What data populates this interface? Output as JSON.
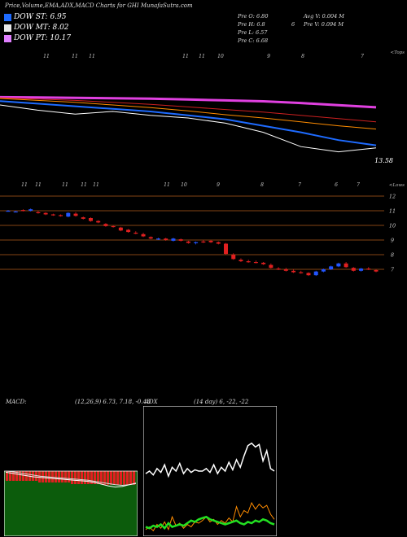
{
  "header": {
    "title": "Price,Volume,EMA,ADX,MACD Charts for GHI MunafaSutra.com"
  },
  "legend": [
    {
      "label": "DOW ST: 6.95",
      "color": "#1e6bff"
    },
    {
      "label": "DOW MT: 8.02",
      "color": "#e8e8e8"
    },
    {
      "label": "DOW PT: 10.17",
      "color": "#e080ff"
    }
  ],
  "ohlc": {
    "open": "Pre O: 6.80",
    "high": "Pre H: 6.8",
    "low": "Pre L: 6.57",
    "close": "Pre C: 6.68",
    "avg_vol": "Avg V: 0.004 M",
    "pre_vol": "Pre V: 0.094 M",
    "six": "6"
  },
  "ema_panel": {
    "top_label": "<Tops",
    "low_label": "<Lows",
    "value_label": "13.58",
    "top_ticks": [
      "11",
      "11",
      "11",
      "11",
      "11",
      "10",
      "9",
      "8",
      "7",
      "6",
      "7"
    ],
    "low_ticks": [
      "11",
      "11",
      "11",
      "11",
      "11",
      "11",
      "10",
      "9",
      "8",
      "7",
      "6",
      "7"
    ]
  },
  "chart_data": [
    {
      "type": "line",
      "title": "",
      "series": [
        {
          "name": "",
          "color": "#e040e0",
          "values": [
            15.6,
            15.58,
            15.55,
            15.52,
            15.48,
            15.42,
            15.35,
            15.28,
            15.15,
            14.98,
            14.82
          ]
        },
        {
          "name": "",
          "color": "#cc2020",
          "values": [
            15.55,
            15.45,
            15.35,
            15.2,
            15.05,
            14.85,
            14.65,
            14.45,
            14.2,
            13.95,
            13.7
          ]
        },
        {
          "name": "",
          "color": "#ff8c00",
          "values": [
            15.5,
            15.35,
            15.2,
            15.0,
            14.8,
            14.55,
            14.25,
            14.0,
            13.7,
            13.4,
            13.15
          ]
        },
        {
          "name": "",
          "color": "#1e6bff",
          "values": [
            15.3,
            15.1,
            14.9,
            14.7,
            14.5,
            14.2,
            13.9,
            13.4,
            12.9,
            12.3,
            11.9
          ]
        },
        {
          "name": "",
          "color": "#ffffff",
          "values": [
            15.0,
            14.6,
            14.3,
            14.5,
            14.2,
            14.0,
            13.6,
            12.9,
            11.8,
            11.4,
            11.7
          ]
        }
      ],
      "ylim": [
        11,
        16
      ]
    },
    {
      "type": "candlestick",
      "title": "",
      "y_ticks": [
        "12",
        "11",
        "10",
        "9",
        "8",
        "7"
      ],
      "candles": [
        [
          11.0,
          11.05,
          10.95,
          11.0
        ],
        [
          10.95,
          11.0,
          10.9,
          10.95
        ],
        [
          11.05,
          11.1,
          10.95,
          11.0
        ],
        [
          11.0,
          11.15,
          10.95,
          11.1
        ],
        [
          10.9,
          11.0,
          10.8,
          10.85
        ],
        [
          10.85,
          10.9,
          10.7,
          10.75
        ],
        [
          10.75,
          10.8,
          10.65,
          10.7
        ],
        [
          10.7,
          10.75,
          10.6,
          10.65
        ],
        [
          10.6,
          10.9,
          10.55,
          10.85
        ],
        [
          10.8,
          10.9,
          10.6,
          10.65
        ],
        [
          10.55,
          10.6,
          10.4,
          10.45
        ],
        [
          10.5,
          10.55,
          10.25,
          10.3
        ],
        [
          10.3,
          10.35,
          10.15,
          10.2
        ],
        [
          10.1,
          10.15,
          9.9,
          9.95
        ],
        [
          9.95,
          10.0,
          9.85,
          9.9
        ],
        [
          9.85,
          9.9,
          9.6,
          9.65
        ],
        [
          9.7,
          9.75,
          9.5,
          9.55
        ],
        [
          9.5,
          9.6,
          9.4,
          9.45
        ],
        [
          9.4,
          9.5,
          9.2,
          9.25
        ],
        [
          9.2,
          9.25,
          9.05,
          9.1
        ],
        [
          9.05,
          9.15,
          9.0,
          9.1
        ],
        [
          9.1,
          9.15,
          8.95,
          9.0
        ],
        [
          8.95,
          9.15,
          8.9,
          9.1
        ],
        [
          9.05,
          9.1,
          8.9,
          8.95
        ],
        [
          8.9,
          8.95,
          8.75,
          8.8
        ],
        [
          8.8,
          8.9,
          8.7,
          8.85
        ],
        [
          8.9,
          9.0,
          8.8,
          8.85
        ],
        [
          8.95,
          9.0,
          8.8,
          8.85
        ],
        [
          8.85,
          8.9,
          8.7,
          8.75
        ],
        [
          8.75,
          8.8,
          8.0,
          8.05
        ],
        [
          8.0,
          8.1,
          7.65,
          7.7
        ],
        [
          7.65,
          7.75,
          7.5,
          7.55
        ],
        [
          7.55,
          7.65,
          7.45,
          7.5
        ],
        [
          7.5,
          7.6,
          7.4,
          7.45
        ],
        [
          7.45,
          7.5,
          7.3,
          7.35
        ],
        [
          7.3,
          7.4,
          7.05,
          7.1
        ],
        [
          7.05,
          7.15,
          6.95,
          7.0
        ],
        [
          7.0,
          7.1,
          6.85,
          6.9
        ],
        [
          6.9,
          7.0,
          6.75,
          6.8
        ],
        [
          6.8,
          6.9,
          6.7,
          6.75
        ],
        [
          6.75,
          6.8,
          6.55,
          6.6
        ],
        [
          6.6,
          6.9,
          6.55,
          6.85
        ],
        [
          6.85,
          7.05,
          6.8,
          7.0
        ],
        [
          7.0,
          7.25,
          6.95,
          7.2
        ],
        [
          7.2,
          7.45,
          7.15,
          7.4
        ],
        [
          7.4,
          7.5,
          7.1,
          7.15
        ],
        [
          7.1,
          7.15,
          6.85,
          6.9
        ],
        [
          6.9,
          7.1,
          6.85,
          7.05
        ],
        [
          7.05,
          7.15,
          6.95,
          7.0
        ],
        [
          6.95,
          7.0,
          6.8,
          6.85
        ]
      ]
    },
    {
      "type": "bar",
      "title": "MACD:",
      "params": "(12,26,9) 6.73, 7.18, -0.43",
      "histogram": [
        -0.3,
        -0.3,
        -0.3,
        -0.3,
        -0.3,
        -0.3,
        -0.3,
        -0.3,
        -0.3,
        -0.3,
        -0.35,
        -0.35,
        -0.35,
        -0.35,
        -0.35,
        -0.35,
        -0.35,
        -0.35,
        -0.35,
        -0.35,
        -0.4,
        -0.4,
        -0.4,
        -0.4,
        -0.4,
        -0.4,
        -0.4,
        -0.4,
        -0.4,
        -0.4,
        -0.42,
        -0.42,
        -0.42,
        -0.42,
        -0.42,
        -0.42,
        -0.42,
        -0.42,
        -0.42,
        -0.42
      ],
      "macd_line": [
        -0.1,
        -0.2,
        -0.3,
        -0.4,
        -0.5,
        -0.55,
        -0.6,
        -0.65,
        -0.7,
        -0.75,
        -0.8,
        -0.85,
        -0.9,
        -1.0,
        -1.15,
        -1.3,
        -1.4,
        -1.35,
        -1.2,
        -1.05
      ],
      "signal_line": [
        0,
        -0.05,
        -0.15,
        -0.25,
        -0.35,
        -0.45,
        -0.5,
        -0.55,
        -0.6,
        -0.65,
        -0.7,
        -0.75,
        -0.8,
        -0.9,
        -1.0,
        -1.1,
        -1.2,
        -1.25,
        -1.2,
        -1.1
      ]
    },
    {
      "type": "line",
      "title": "ADX",
      "params": "(14 day) 6, -22, -22",
      "series": [
        {
          "name": "",
          "color": "#ffffff",
          "values": [
            48,
            50,
            47,
            52,
            49,
            55,
            46,
            53,
            50,
            56,
            48,
            52,
            49,
            51,
            50,
            50,
            52,
            49,
            55,
            48,
            53,
            50,
            57,
            51,
            59,
            53,
            62,
            70,
            72,
            69,
            71,
            58,
            66,
            52,
            50
          ]
        },
        {
          "name": "",
          "color": "#ff8c00",
          "values": [
            4,
            6,
            3,
            8,
            5,
            10,
            4,
            14,
            7,
            9,
            5,
            8,
            6,
            10,
            9,
            11,
            14,
            10,
            12,
            8,
            11,
            9,
            13,
            10,
            22,
            14,
            19,
            17,
            25,
            20,
            24,
            21,
            23,
            16,
            12
          ]
        },
        {
          "name": "",
          "color": "#22e022",
          "values": [
            6,
            5,
            7,
            6,
            8,
            5,
            9,
            6,
            7,
            8,
            7,
            9,
            11,
            10,
            12,
            13,
            14,
            12,
            11,
            10,
            9,
            8,
            9,
            10,
            11,
            9,
            8,
            10,
            9,
            11,
            10,
            12,
            11,
            9,
            8
          ]
        }
      ],
      "ylim": [
        0,
        100
      ]
    }
  ]
}
